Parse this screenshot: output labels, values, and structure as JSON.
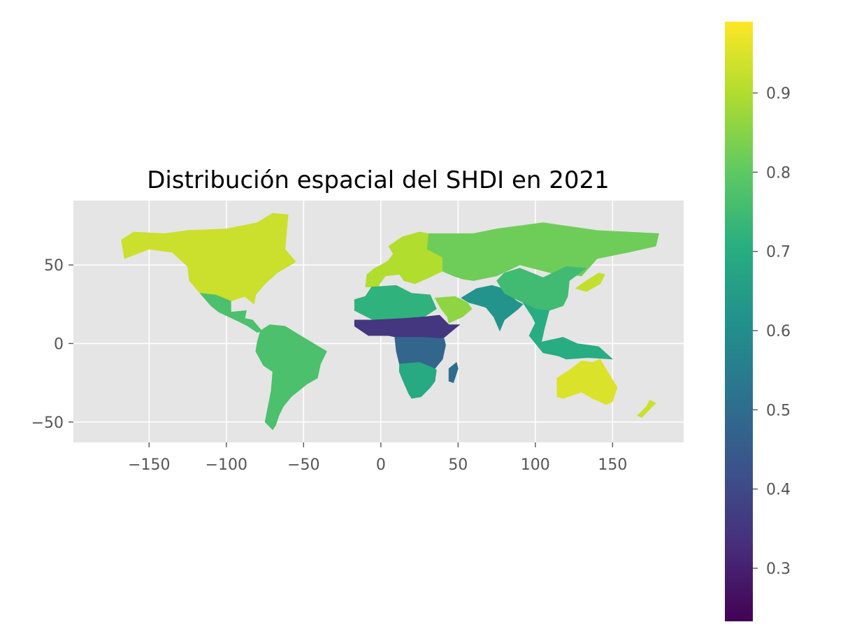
{
  "chart_data": {
    "type": "choropleth",
    "title": "Distribución espacial del SHDI en 2021",
    "xlabel": "",
    "ylabel": "",
    "x_ticks": [
      -150,
      -100,
      -50,
      0,
      50,
      100,
      150
    ],
    "x_tick_labels": [
      "−150",
      "−100",
      "−50",
      "0",
      "50",
      "100",
      "150"
    ],
    "y_ticks": [
      50,
      0,
      -50
    ],
    "y_tick_labels": [
      "50",
      "0",
      "−50"
    ],
    "xlim": [
      -199,
      196
    ],
    "ylim": [
      -63,
      91
    ],
    "grid": true,
    "background": "#e5e5e5",
    "colormap": "viridis",
    "colorbar": {
      "range": [
        0.233,
        0.99
      ],
      "ticks": [
        0.3,
        0.4,
        0.5,
        0.6,
        0.7,
        0.8,
        0.9
      ],
      "tick_labels": [
        "0.3",
        "0.4",
        "0.5",
        "0.6",
        "0.7",
        "0.8",
        "0.9"
      ],
      "location": "right"
    },
    "regions": [
      {
        "name": "North America",
        "value": 0.93
      },
      {
        "name": "Mexico / Central America",
        "value": 0.77
      },
      {
        "name": "South America",
        "value": 0.77
      },
      {
        "name": "Europe",
        "value": 0.9
      },
      {
        "name": "North Africa",
        "value": 0.72
      },
      {
        "name": "Sahel",
        "value": 0.35
      },
      {
        "name": "Central Africa",
        "value": 0.48
      },
      {
        "name": "Southern Africa",
        "value": 0.69
      },
      {
        "name": "Madagascar",
        "value": 0.5
      },
      {
        "name": "Arabian Peninsula",
        "value": 0.86
      },
      {
        "name": "Russia / Central Asia",
        "value": 0.82
      },
      {
        "name": "South Asia",
        "value": 0.62
      },
      {
        "name": "China",
        "value": 0.75
      },
      {
        "name": "Southeast Asia",
        "value": 0.7
      },
      {
        "name": "Japan / Korea",
        "value": 0.92
      },
      {
        "name": "Australia",
        "value": 0.95
      },
      {
        "name": "New Zealand",
        "value": 0.93
      }
    ]
  }
}
